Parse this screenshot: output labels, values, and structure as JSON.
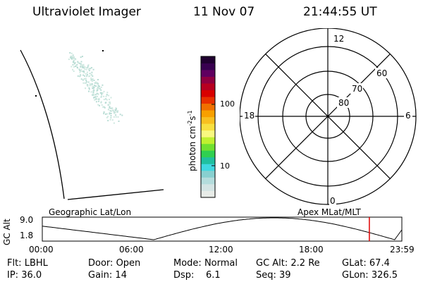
{
  "header": {
    "instrument": "Ultraviolet Imager",
    "date": "11 Nov 07",
    "time": "21:44:55 UT"
  },
  "colorbar": {
    "label": "photon cm",
    "label_sup1": "-2",
    "label_s": "s",
    "label_sup2": "-1",
    "tick_100": "100",
    "tick_10": "10",
    "colors": [
      "#e8ece8",
      "#d4e4e4",
      "#b4dcdc",
      "#88d0d0",
      "#40d8e0",
      "#20c0a0",
      "#30d050",
      "#70e030",
      "#c0f030",
      "#f8f880",
      "#f8e040",
      "#f8c020",
      "#f8a000",
      "#f07000",
      "#e83000",
      "#d80000",
      "#b80020",
      "#900040",
      "#600060",
      "#380050",
      "#200030"
    ]
  },
  "polar": {
    "lat_labels": [
      "80",
      "70",
      "60"
    ],
    "mlt_labels": {
      "top": "12",
      "bottom": "0",
      "left": "18",
      "right": "6"
    }
  },
  "labels": {
    "geo": "Geographic Lat/Lon",
    "apex": "Apex MLat/MLT"
  },
  "orbit": {
    "axis_label": "GC Alt",
    "y_max": "9.0",
    "y_min": "1.8",
    "x_ticks": [
      "00:00",
      "06:00",
      "12:00",
      "18:00",
      "23:59"
    ],
    "current_time_fraction": 0.9097
  },
  "info": {
    "flt_label": "Flt:",
    "flt_value": "LBHL",
    "door_label": "Door:",
    "door_value": "Open",
    "mode_label": "Mode:",
    "mode_value": "Normal",
    "gcalt_label": "GC Alt:",
    "gcalt_value": "2.2 Re",
    "glat_label": "GLat:",
    "glat_value": "67.4",
    "ip_label": "IP:",
    "ip_value": "36.0",
    "gain_label": "Gain:",
    "gain_value": "14",
    "dsp_label": "Dsp:",
    "dsp_value": "6.1",
    "seq_label": "Seq:",
    "seq_value": "39",
    "glon_label": "GLon:",
    "glon_value": "326.5"
  }
}
